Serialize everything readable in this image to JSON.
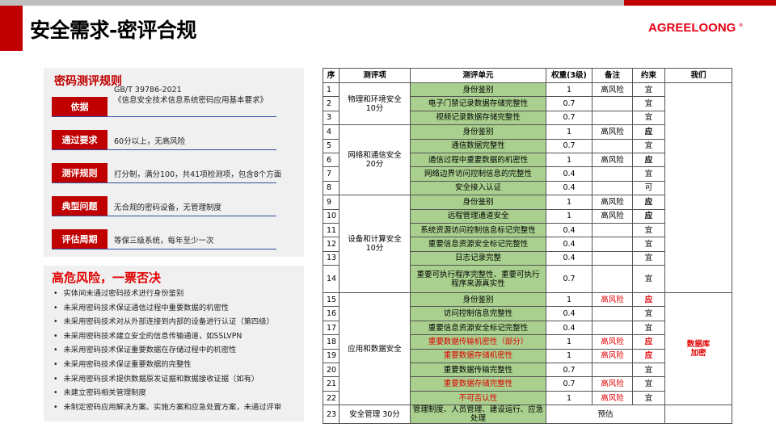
{
  "header": {
    "title": "安全需求-密评合规",
    "logo": "AGREELOONG",
    "logo_mark": "®"
  },
  "rules": {
    "title": "密码测评规则",
    "items": [
      {
        "label": "依据",
        "text": "GB/T 39786-2021",
        "text2": "《信息安全技术信息系统密码应用基本要求》"
      },
      {
        "label": "通过要求",
        "text": "60分以上，无高风险"
      },
      {
        "label": "测评规则",
        "text": "打分制，满分100，共41项检测项，包含8个方面"
      },
      {
        "label": "典型问题",
        "text": "无合规的密码设备，无管理制度"
      },
      {
        "label": "评估周期",
        "text": "等保三级系统，每年至少一次"
      }
    ]
  },
  "risks": {
    "title": "高危风险，一票否决",
    "items": [
      "实体间未通过密码技术进行身份鉴别",
      "未采用密码技术保证通信过程中重要数据的机密性",
      "未采用密码技术对从外部连接到内部的设备进行认证（第四级）",
      "未采用密码技术建立安全的信息传输通道，如SSLVPN",
      "未采用密码技术保证重要数据在存储过程中的机密性",
      "未采用密码技术保证重要数据的完整性",
      "未采用密码技术提供数据原发证据和数据接收证据（如有）",
      "未建立密码相关管理制度",
      "未制定密码应用解决方案、实施方案和应急处置方案，未通过评审"
    ]
  },
  "table": {
    "headers": [
      "序",
      "测评项",
      "测评单元",
      "权重(3级)",
      "备注",
      "约束",
      "我们"
    ],
    "groups": [
      {
        "name": "物理和环境安全\n10分",
        "rows": [
          {
            "seq": "1",
            "unit": "身份鉴别",
            "weight": "1",
            "note": "高风险",
            "con": "宜"
          },
          {
            "seq": "2",
            "unit": "电子门禁记录数据存储完整性",
            "weight": "0.7",
            "note": "",
            "con": "宜"
          },
          {
            "seq": "3",
            "unit": "视频记录数据存储完整性",
            "weight": "0.7",
            "note": "",
            "con": "宜"
          }
        ]
      },
      {
        "name": "网络和通信安全\n20分",
        "rows": [
          {
            "seq": "4",
            "unit": "身份鉴别",
            "weight": "1",
            "note": "高风险",
            "con": "应"
          },
          {
            "seq": "5",
            "unit": "通信数据完整性",
            "weight": "0.7",
            "note": "",
            "con": "宜"
          },
          {
            "seq": "6",
            "unit": "通信过程中重要数据的机密性",
            "weight": "1",
            "note": "高风险",
            "con": "应"
          },
          {
            "seq": "7",
            "unit": "网络边界访问控制信息的完整性",
            "weight": "0.4",
            "note": "",
            "con": "宜"
          },
          {
            "seq": "8",
            "unit": "安全接入认证",
            "weight": "0.4",
            "note": "",
            "con": "可"
          }
        ]
      },
      {
        "name": "设备和计算安全\n10分",
        "rows": [
          {
            "seq": "9",
            "unit": "身份鉴别",
            "weight": "1",
            "note": "高风险",
            "con": "应"
          },
          {
            "seq": "10",
            "unit": "远程管理通道安全",
            "weight": "1",
            "note": "高风险",
            "con": "应"
          },
          {
            "seq": "11",
            "unit": "系统资源访问控制信息标记完整性",
            "weight": "0.4",
            "note": "",
            "con": "宜"
          },
          {
            "seq": "12",
            "unit": "重要信息资源安全标记完整性",
            "weight": "0.4",
            "note": "",
            "con": "宜"
          },
          {
            "seq": "13",
            "unit": "日志记录完整",
            "weight": "0.4",
            "note": "",
            "con": "宜"
          },
          {
            "seq": "14",
            "unit": "重要可执行程序完整性、重要可执行程序来源真实性",
            "weight": "0.7",
            "note": "",
            "con": "宜",
            "tall": true
          }
        ]
      },
      {
        "name": "应用和数据安全",
        "rows": [
          {
            "seq": "15",
            "unit": "身份鉴别",
            "weight": "1",
            "note": "高风险",
            "con": "应",
            "noteRed": true,
            "conRed": true
          },
          {
            "seq": "16",
            "unit": "访问控制信息完整性",
            "weight": "0.4",
            "note": "",
            "con": "宜"
          },
          {
            "seq": "17",
            "unit": "重要信息资源安全标记完整性",
            "weight": "0.4",
            "note": "",
            "con": "宜"
          },
          {
            "seq": "18",
            "unit": "重要数据传输机密性（部分）",
            "weight": "1",
            "note": "高风险",
            "con": "应",
            "unitRed": true,
            "noteRed": true,
            "conRed": true
          },
          {
            "seq": "19",
            "unit": "重要数据存储机密性",
            "weight": "1",
            "note": "高风险",
            "con": "应",
            "unitRed": true,
            "noteRed": true,
            "conRed": true
          },
          {
            "seq": "20",
            "unit": "重要数据传输完整性",
            "weight": "0.7",
            "note": "",
            "con": "宜"
          },
          {
            "seq": "21",
            "unit": "重要数据存储完整性",
            "weight": "0.7",
            "note": "高风险",
            "con": "宜",
            "unitRed": true,
            "noteRed": true
          },
          {
            "seq": "22",
            "unit": "不可否认性",
            "weight": "1",
            "note": "高风险",
            "con": "宜",
            "unitRed": true,
            "noteRed": true
          }
        ]
      }
    ],
    "us_note": "数据库\n加密",
    "last": {
      "seq": "23",
      "item": "安全管理 30分",
      "unit": "管理制度、人员管理、建设运行、应急处理",
      "estimate": "预估"
    }
  },
  "colors": {
    "accent": "#c00000",
    "green": "#a9d08e",
    "risk_red": "#e00000"
  }
}
